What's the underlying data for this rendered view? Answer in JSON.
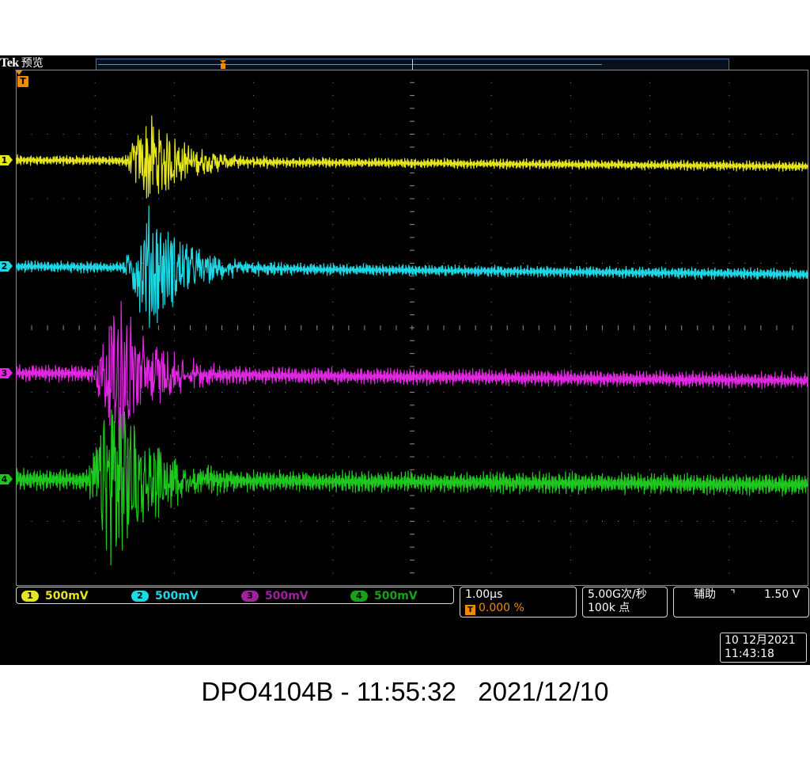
{
  "header": {
    "brand": "Tek",
    "mode": "预览"
  },
  "trigger_marker": "T",
  "colors": {
    "ch1": "#e6e61e",
    "ch2": "#1ed8e6",
    "ch3": "#e028e0",
    "ch4": "#1ec81e",
    "trigger": "#f08a00",
    "grid": "#8a8a8a"
  },
  "channels": [
    {
      "id": "1",
      "scale": "500mV"
    },
    {
      "id": "2",
      "scale": "500mV"
    },
    {
      "id": "3",
      "scale": "500mV"
    },
    {
      "id": "4",
      "scale": "500mV"
    }
  ],
  "timebase": {
    "scale": "1.00µs",
    "position": "0.000 %"
  },
  "acquisition": {
    "sample_rate": "5.00G次/秒",
    "record_length": "100k 点"
  },
  "trigger": {
    "source": "辅助",
    "slope_symbol": "⌝",
    "level": "1.50 V"
  },
  "datetime": {
    "date": "10 12月2021",
    "time": "11:43:18"
  },
  "caption": "DPO4104B - 11:55:32   2021/12/10",
  "chart_data": {
    "type": "line",
    "grid": "10 x 8 divisions, on",
    "x_divisions": 10,
    "y_divisions": 8,
    "time_per_div_us": 1.0,
    "volts_per_div": 0.5,
    "series": [
      {
        "name": "1",
        "offset_div": 2.6,
        "burst_start_div": 1.35,
        "burst_peak_amplitude_div": 0.7,
        "baseline_noise_div": 0.06,
        "drift_end_div": -0.1
      },
      {
        "name": "2",
        "offset_div": 0.95,
        "burst_start_div": 1.35,
        "burst_peak_amplitude_div": 1.0,
        "baseline_noise_div": 0.07,
        "drift_end_div": -0.12
      },
      {
        "name": "3",
        "offset_div": -0.7,
        "burst_start_div": 0.95,
        "burst_peak_amplitude_div": 1.2,
        "baseline_noise_div": 0.1,
        "drift_end_div": -0.12
      },
      {
        "name": "4",
        "offset_div": -2.35,
        "burst_start_div": 0.9,
        "burst_peak_amplitude_div": 1.55,
        "baseline_noise_div": 0.13,
        "drift_end_div": -0.08
      }
    ]
  }
}
